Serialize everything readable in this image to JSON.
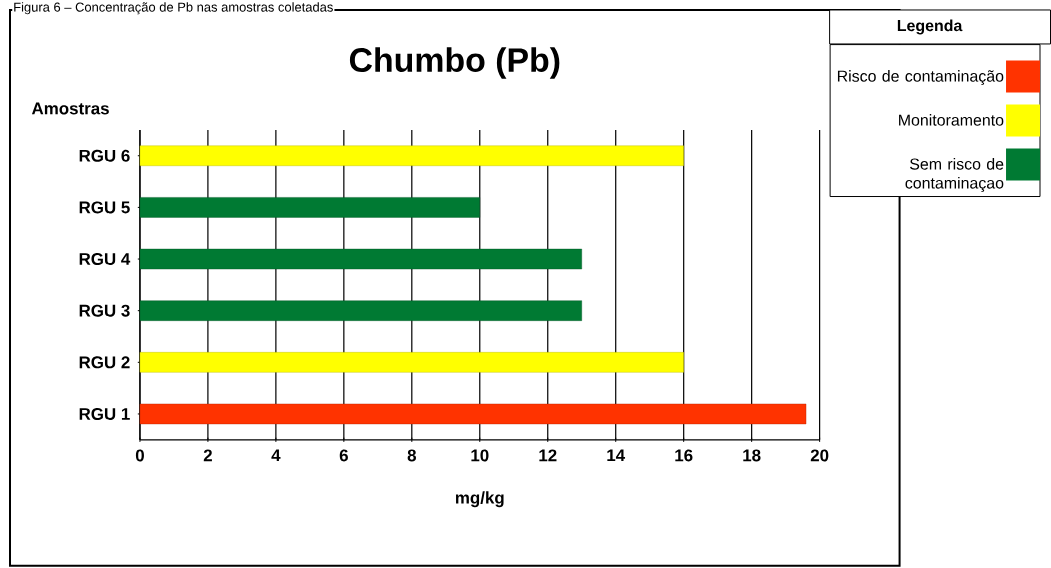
{
  "chart_data": {
    "type": "bar",
    "orientation": "horizontal",
    "title": "Chumbo (Pb)",
    "xlabel": "mg/kg",
    "ylabel": "Amostras",
    "legend_title": "Legenda",
    "legend": "top right",
    "grid": "x",
    "categories": [
      "RGU 6",
      "RGU 5",
      "RGU 4",
      "RGU 3",
      "RGU 2",
      "RGU 1"
    ],
    "series": [
      {
        "name": "Risco de contaminação",
        "color": "#ff3300",
        "values": [
          null,
          null,
          null,
          null,
          null,
          19.6
        ]
      },
      {
        "name": "Monitoramento",
        "color": "#ffff00",
        "values": [
          16,
          null,
          null,
          null,
          16,
          null
        ]
      },
      {
        "name": "Sem risco de contaminaçao",
        "color": "#007a33",
        "values": [
          null,
          10,
          13,
          13,
          null,
          null
        ]
      }
    ],
    "xlim": [
      0,
      20
    ],
    "xticks": [
      0,
      2,
      4,
      6,
      8,
      10,
      12,
      14,
      16,
      18,
      20
    ],
    "annotations": [
      "Figura 6 – Concentração de Pb nas amostras coletadas"
    ]
  }
}
